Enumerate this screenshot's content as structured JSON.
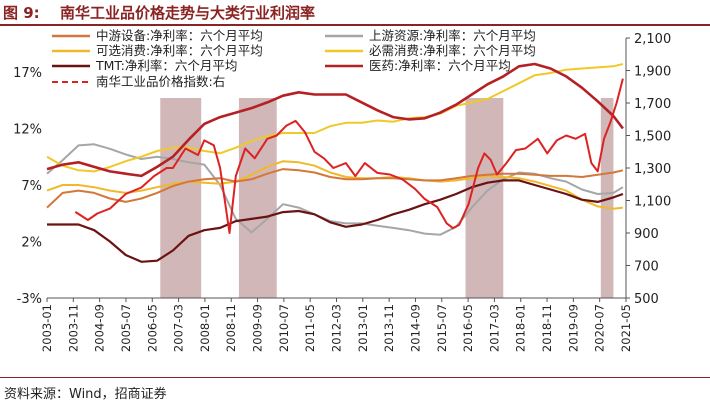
{
  "figure": {
    "number": "图 9:",
    "title": "南华工业品价格走势与大类行业利润率",
    "source": "资料来源：Wind，招商证券"
  },
  "colors": {
    "title": "#8a2323",
    "shade": "#c9aaaa",
    "midstream": "#d4773a",
    "upstream": "#a6a6a6",
    "optional": "#f0b92a",
    "necessary": "#efc928",
    "tmt": "#6b1212",
    "pharma": "#b52025",
    "nanhua": "#dd2222"
  },
  "chart_data": {
    "type": "line",
    "title": "南华工业品价格走势与大类行业利润率",
    "y_left": {
      "ticks": [
        "17%",
        "12%",
        "7%",
        "2%",
        "-3%"
      ],
      "values": [
        17,
        12,
        7,
        2,
        -3
      ],
      "ylim": [
        -3,
        20
      ]
    },
    "y_right": {
      "ticks": [
        "2,100",
        "1,900",
        "1,700",
        "1,500",
        "1,300",
        "1,100",
        "900",
        "700",
        "500"
      ],
      "values": [
        2100,
        1900,
        1700,
        1500,
        1300,
        1100,
        900,
        700,
        500
      ],
      "ylim": [
        500,
        2100
      ]
    },
    "x": {
      "labels": [
        "2003-01",
        "2003-11",
        "2004-09",
        "2005-07",
        "2006-05",
        "2007-03",
        "2008-01",
        "2008-11",
        "2009-09",
        "2010-07",
        "2011-05",
        "2012-03",
        "2013-01",
        "2013-11",
        "2014-09",
        "2015-07",
        "2016-05",
        "2017-03",
        "2018-01",
        "2018-11",
        "2019-09",
        "2020-07",
        "2021-05"
      ],
      "range": [
        2003.0,
        2021.4
      ]
    },
    "shaded_periods": [
      [
        2006.6,
        2007.9
      ],
      [
        2009.1,
        2010.3
      ],
      [
        2016.3,
        2017.5
      ],
      [
        2020.6,
        2021.0
      ]
    ],
    "series": [
      {
        "key": "midstream",
        "name": "中游设备:净利率：六个月平均",
        "axis": "left",
        "x": [
          2003.0,
          2003.5,
          2004.0,
          2004.5,
          2005.0,
          2005.5,
          2006.0,
          2006.5,
          2007.0,
          2007.5,
          2008.0,
          2008.5,
          2009.0,
          2009.5,
          2010.0,
          2010.5,
          2011.0,
          2011.5,
          2012.0,
          2012.5,
          2013.0,
          2013.5,
          2014.0,
          2014.5,
          2015.0,
          2015.5,
          2016.0,
          2016.5,
          2017.0,
          2017.5,
          2018.0,
          2018.5,
          2019.0,
          2019.5,
          2020.0,
          2020.5,
          2021.0,
          2021.3
        ],
        "values": [
          5.0,
          6.3,
          6.5,
          6.3,
          5.8,
          5.5,
          5.8,
          6.3,
          6.9,
          7.3,
          7.5,
          7.6,
          7.3,
          7.5,
          8.0,
          8.4,
          8.3,
          8.1,
          7.7,
          7.5,
          7.5,
          7.6,
          7.6,
          7.5,
          7.4,
          7.4,
          7.6,
          7.8,
          7.9,
          8.0,
          8.0,
          7.9,
          7.8,
          7.8,
          7.7,
          7.9,
          8.1,
          8.3
        ]
      },
      {
        "key": "upstream",
        "name": "上游资源:净利率：六个月平均",
        "axis": "left",
        "x": [
          2003.0,
          2003.5,
          2004.0,
          2004.5,
          2005.0,
          2005.5,
          2006.0,
          2006.5,
          2007.0,
          2007.5,
          2008.0,
          2008.5,
          2009.0,
          2009.5,
          2010.0,
          2010.5,
          2011.0,
          2011.5,
          2012.0,
          2012.5,
          2013.0,
          2013.5,
          2014.0,
          2014.5,
          2015.0,
          2015.5,
          2016.0,
          2016.5,
          2017.0,
          2017.5,
          2018.0,
          2018.5,
          2019.0,
          2019.5,
          2020.0,
          2020.5,
          2021.0,
          2021.3
        ],
        "values": [
          8.0,
          9.2,
          10.5,
          10.6,
          10.2,
          9.7,
          9.3,
          9.5,
          9.3,
          9.0,
          8.8,
          7.0,
          4.0,
          2.8,
          4.0,
          5.3,
          5.0,
          4.4,
          3.8,
          3.6,
          3.6,
          3.4,
          3.2,
          3.0,
          2.7,
          2.6,
          3.3,
          5.0,
          6.5,
          7.5,
          8.1,
          8.0,
          7.6,
          7.3,
          6.6,
          6.2,
          6.3,
          6.8
        ]
      },
      {
        "key": "optional",
        "name": "可选消费:净利率：六个月平均",
        "axis": "left",
        "x": [
          2003.0,
          2003.5,
          2004.0,
          2004.5,
          2005.0,
          2005.5,
          2006.0,
          2006.5,
          2007.0,
          2007.5,
          2008.0,
          2008.5,
          2009.0,
          2009.5,
          2010.0,
          2010.5,
          2011.0,
          2011.5,
          2012.0,
          2012.5,
          2013.0,
          2013.5,
          2014.0,
          2014.5,
          2015.0,
          2015.5,
          2016.0,
          2016.5,
          2017.0,
          2017.5,
          2018.0,
          2018.5,
          2019.0,
          2019.5,
          2020.0,
          2020.5,
          2021.0,
          2021.3
        ],
        "values": [
          6.5,
          7.0,
          7.0,
          6.8,
          6.5,
          6.3,
          6.5,
          6.8,
          7.1,
          7.3,
          7.2,
          7.1,
          7.3,
          7.9,
          8.6,
          9.1,
          9.0,
          8.7,
          8.1,
          7.7,
          7.6,
          7.6,
          7.7,
          7.6,
          7.4,
          7.3,
          7.4,
          7.6,
          7.8,
          7.7,
          7.6,
          7.3,
          6.9,
          6.5,
          5.7,
          5.1,
          4.9,
          5.0
        ]
      },
      {
        "key": "necessary",
        "name": "必需消费:净利率：六个月平均",
        "axis": "left",
        "x": [
          2003.0,
          2003.5,
          2004.0,
          2004.5,
          2005.0,
          2005.5,
          2006.0,
          2006.5,
          2007.0,
          2007.5,
          2008.0,
          2008.5,
          2009.0,
          2009.5,
          2010.0,
          2010.5,
          2011.0,
          2011.5,
          2012.0,
          2012.5,
          2013.0,
          2013.5,
          2014.0,
          2014.5,
          2015.0,
          2015.5,
          2016.0,
          2016.5,
          2017.0,
          2017.5,
          2018.0,
          2018.5,
          2019.0,
          2019.5,
          2020.0,
          2020.5,
          2021.0,
          2021.3
        ],
        "values": [
          9.5,
          8.7,
          8.3,
          8.2,
          8.6,
          9.1,
          9.5,
          10.0,
          10.3,
          10.3,
          10.0,
          9.8,
          10.3,
          10.9,
          11.3,
          11.6,
          11.6,
          11.6,
          12.2,
          12.5,
          12.5,
          12.7,
          12.6,
          12.9,
          13.0,
          13.3,
          14.0,
          14.3,
          14.6,
          15.3,
          16.0,
          16.7,
          16.9,
          17.2,
          17.3,
          17.4,
          17.5,
          17.7
        ]
      },
      {
        "key": "tmt",
        "name": "TMT:净利率：六个月平均",
        "axis": "left",
        "x": [
          2003.0,
          2003.5,
          2004.0,
          2004.5,
          2005.0,
          2005.5,
          2006.0,
          2006.5,
          2007.0,
          2007.5,
          2008.0,
          2008.5,
          2009.0,
          2009.5,
          2010.0,
          2010.5,
          2011.0,
          2011.5,
          2012.0,
          2012.5,
          2013.0,
          2013.5,
          2014.0,
          2014.5,
          2015.0,
          2015.5,
          2016.0,
          2016.5,
          2017.0,
          2017.5,
          2018.0,
          2018.5,
          2019.0,
          2019.5,
          2020.0,
          2020.5,
          2021.0,
          2021.3
        ],
        "values": [
          3.5,
          3.5,
          3.5,
          3.0,
          2.0,
          0.8,
          0.2,
          0.3,
          1.2,
          2.5,
          3.0,
          3.2,
          3.8,
          4.0,
          4.2,
          4.6,
          4.7,
          4.4,
          3.7,
          3.3,
          3.5,
          3.9,
          4.4,
          4.8,
          5.3,
          5.7,
          6.2,
          6.8,
          7.2,
          7.4,
          7.4,
          7.0,
          6.6,
          6.2,
          5.7,
          5.5,
          5.9,
          6.2
        ]
      },
      {
        "key": "pharma",
        "name": "医药:净利率：六个月平均",
        "axis": "left",
        "x": [
          2003.0,
          2003.5,
          2004.0,
          2004.5,
          2005.0,
          2005.5,
          2006.0,
          2006.5,
          2007.0,
          2007.5,
          2008.0,
          2008.5,
          2009.0,
          2009.5,
          2010.0,
          2010.5,
          2011.0,
          2011.5,
          2012.0,
          2012.5,
          2013.0,
          2013.5,
          2014.0,
          2014.5,
          2015.0,
          2015.5,
          2016.0,
          2016.5,
          2017.0,
          2017.5,
          2018.0,
          2018.5,
          2019.0,
          2019.5,
          2020.0,
          2020.5,
          2021.0,
          2021.3
        ],
        "values": [
          8.4,
          8.8,
          9.0,
          8.6,
          8.2,
          8.0,
          7.8,
          8.6,
          9.5,
          11.0,
          12.4,
          13.0,
          13.4,
          13.8,
          14.3,
          14.9,
          15.2,
          15.0,
          15.0,
          15.0,
          14.3,
          13.6,
          13.0,
          12.8,
          12.9,
          13.4,
          14.1,
          15.0,
          15.9,
          16.6,
          17.5,
          17.7,
          17.3,
          16.6,
          15.6,
          14.4,
          13.1,
          12.0
        ]
      },
      {
        "key": "nanhua",
        "name": "南华工业品价格指数:右",
        "axis": "right",
        "x": [
          2003.9,
          2004.3,
          2004.6,
          2005.0,
          2005.5,
          2006.0,
          2006.4,
          2006.8,
          2007.0,
          2007.4,
          2007.8,
          2008.0,
          2008.3,
          2008.5,
          2008.8,
          2009.0,
          2009.3,
          2009.6,
          2010.0,
          2010.3,
          2010.6,
          2010.9,
          2011.2,
          2011.5,
          2011.8,
          2012.1,
          2012.5,
          2012.8,
          2013.1,
          2013.5,
          2013.9,
          2014.3,
          2014.7,
          2015.0,
          2015.4,
          2015.7,
          2015.9,
          2016.1,
          2016.4,
          2016.7,
          2016.9,
          2017.1,
          2017.3,
          2017.6,
          2017.9,
          2018.2,
          2018.6,
          2018.9,
          2019.2,
          2019.5,
          2019.8,
          2020.1,
          2020.3,
          2020.5,
          2020.7,
          2020.9,
          2021.1,
          2021.3
        ],
        "values": [
          1030,
          980,
          1020,
          1050,
          1140,
          1180,
          1250,
          1300,
          1300,
          1420,
          1380,
          1470,
          1440,
          1300,
          900,
          1250,
          1420,
          1360,
          1480,
          1500,
          1560,
          1590,
          1520,
          1400,
          1360,
          1300,
          1330,
          1250,
          1330,
          1270,
          1260,
          1230,
          1170,
          1110,
          1060,
          960,
          930,
          950,
          1080,
          1300,
          1390,
          1350,
          1260,
          1330,
          1410,
          1420,
          1480,
          1390,
          1470,
          1500,
          1480,
          1510,
          1330,
          1280,
          1480,
          1580,
          1700,
          1850
        ]
      }
    ]
  }
}
